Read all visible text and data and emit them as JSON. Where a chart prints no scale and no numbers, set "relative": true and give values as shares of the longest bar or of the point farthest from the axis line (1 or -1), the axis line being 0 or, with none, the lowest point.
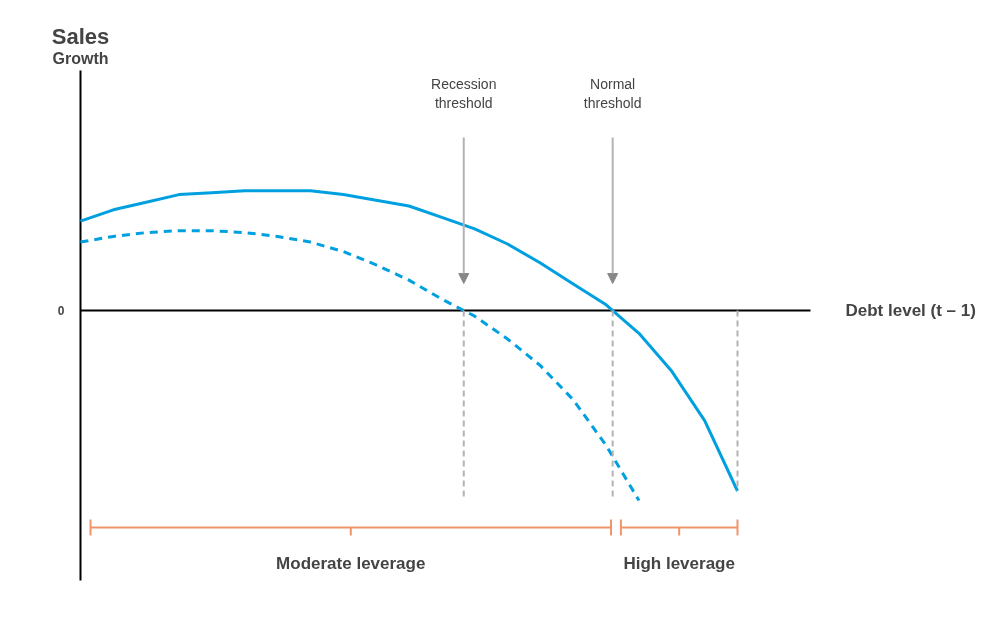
{
  "chart_data": {
    "type": "line",
    "relative": true,
    "title": "Sales",
    "grid": false,
    "marker": "none",
    "categories": [
      null,
      null,
      null,
      null,
      null,
      null,
      null,
      null,
      null,
      null,
      null,
      null,
      null,
      null,
      null,
      null,
      null,
      null,
      null,
      null,
      null
    ],
    "annotations": [
      "0",
      "Recession\nthreshold",
      "Normal\nthreshold",
      "Moderate leverage",
      "High leverage",
      "Growth",
      "Debt level (t – 1)"
    ],
    "series": [
      {
        "color": "#00a0e0",
        "line_style": "solid",
        "values": [
          0.47,
          0.53,
          0.57,
          0.61,
          0.62,
          0.63,
          0.63,
          0.63,
          0.61,
          0.58,
          0.55,
          0.49,
          0.43,
          0.35,
          0.25,
          0.14,
          0.03,
          -0.12,
          -0.32,
          -0.58,
          -0.95
        ]
      },
      {
        "color": "#00a0e0",
        "line_style": "dashed",
        "values": [
          0.36,
          0.39,
          0.41,
          0.42,
          0.42,
          0.41,
          0.39,
          0.36,
          0.31,
          0.24,
          0.16,
          0.06,
          -0.03,
          -0.15,
          -0.29,
          -0.47,
          -0.71,
          -1.0,
          null,
          null,
          null
        ]
      }
    ]
  }
}
